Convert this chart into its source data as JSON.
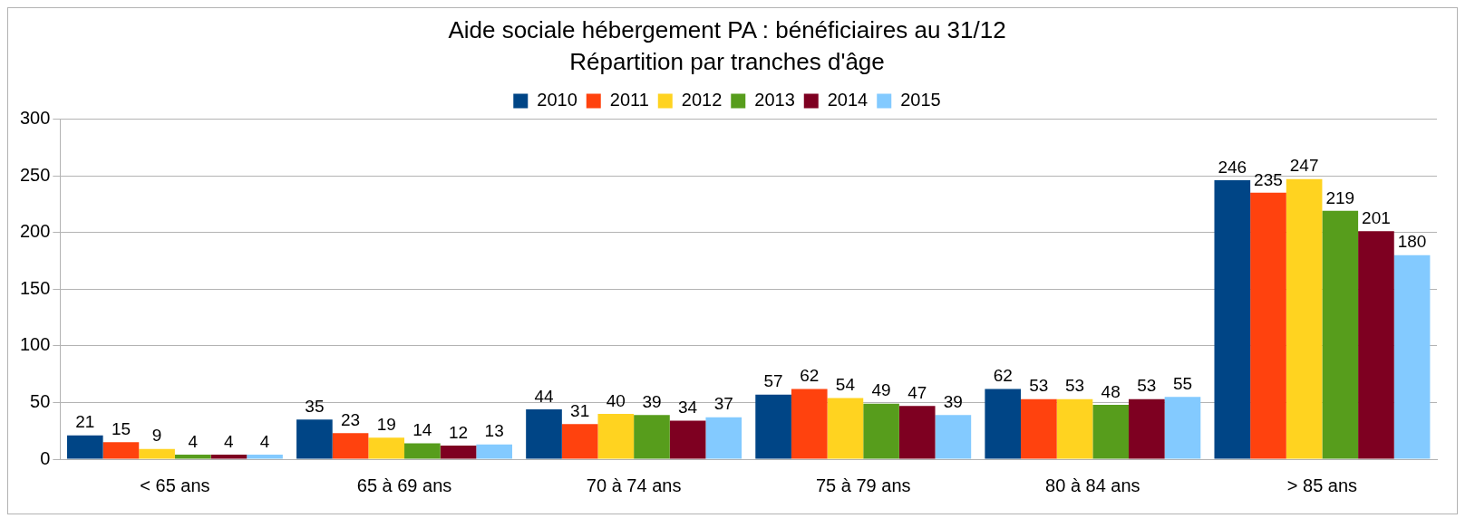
{
  "chart_data": {
    "type": "bar",
    "title": "Aide sociale hébergement PA : bénéficiaires au 31/12",
    "subtitle": "Répartition par tranches d'âge",
    "categories": [
      "< 65 ans",
      "65 à 69 ans",
      "70 à 74 ans",
      "75 à 79 ans",
      "80 à 84 ans",
      "> 85 ans"
    ],
    "series": [
      {
        "name": "2010",
        "color": "#004586",
        "values": [
          21,
          35,
          44,
          57,
          62,
          246
        ]
      },
      {
        "name": "2011",
        "color": "#ff420e",
        "values": [
          15,
          23,
          31,
          62,
          53,
          235
        ]
      },
      {
        "name": "2012",
        "color": "#ffd320",
        "values": [
          9,
          19,
          40,
          54,
          53,
          247
        ]
      },
      {
        "name": "2013",
        "color": "#579d1c",
        "values": [
          4,
          14,
          39,
          49,
          48,
          219
        ]
      },
      {
        "name": "2014",
        "color": "#7e0021",
        "values": [
          4,
          12,
          34,
          47,
          53,
          201
        ]
      },
      {
        "name": "2015",
        "color": "#83caff",
        "values": [
          4,
          13,
          37,
          39,
          55,
          180
        ]
      }
    ],
    "ylim": [
      0,
      300
    ],
    "yticks": [
      0,
      50,
      100,
      150,
      200,
      250,
      300
    ],
    "grid": "y",
    "legend": "top",
    "data_labels": true
  }
}
